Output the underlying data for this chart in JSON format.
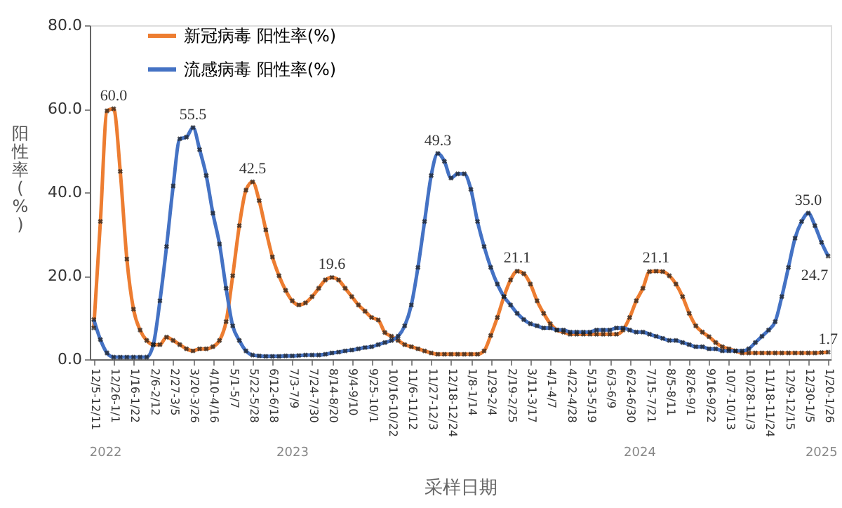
{
  "chart_data": {
    "type": "line",
    "xlabel": "采样日期",
    "ylabel": "阳性率(%)",
    "categories": [
      "12/5-12/11",
      null,
      null,
      "12/26-1/1",
      null,
      null,
      "1/16-1/22",
      null,
      null,
      "2/6-2/12",
      null,
      null,
      "2/27-3/5",
      null,
      null,
      "3/20-3/26",
      null,
      null,
      "4/10-4/16",
      null,
      null,
      "5/1-5/7",
      null,
      null,
      "5/22-5/28",
      null,
      null,
      "6/12-6/18",
      null,
      null,
      "7/3-7/9",
      null,
      null,
      "7/24-7/30",
      null,
      null,
      "8/14-8/20",
      null,
      null,
      "9/4-9/10",
      null,
      null,
      "9/25-10/1",
      null,
      null,
      "10/16-10/22",
      null,
      null,
      "11/6-11/12",
      null,
      null,
      "11/27-12/3",
      null,
      null,
      "12/18-12/24",
      null,
      null,
      "1/8-1/14",
      null,
      null,
      "1/29-2/4",
      null,
      null,
      "2/19-2/25",
      null,
      null,
      "3/11-3/17",
      null,
      null,
      "4/1-4/7",
      null,
      null,
      "4/22-4/28",
      null,
      null,
      "5/13-5/19",
      null,
      null,
      "6/3-6/9",
      null,
      null,
      "6/24-6/30",
      null,
      null,
      "7/15-7/21",
      null,
      null,
      "8/5-8/11",
      null,
      null,
      "8/26-9/1",
      null,
      null,
      "9/16-9/22",
      null,
      null,
      "10/7-10/13",
      null,
      null,
      "10/28-11/3",
      null,
      null,
      "11/18-11/24",
      null,
      null,
      "12/9-12/15",
      null,
      null,
      "12/30-1/5",
      null,
      null,
      "1/20-1/26"
    ],
    "series": [
      {
        "name": "新冠病毒 阳性率(%)",
        "color": "#ed7d31",
        "values": [
          7.5,
          33,
          59.5,
          60,
          45,
          24,
          12,
          7,
          4.5,
          3.5,
          3.5,
          5.3,
          4.5,
          3.5,
          2.5,
          2,
          2.5,
          2.5,
          3,
          4.5,
          9,
          20,
          32,
          40.5,
          42.5,
          38,
          31,
          24.5,
          20,
          16.5,
          14,
          13,
          13.5,
          15,
          17,
          19,
          19.6,
          19,
          17,
          15,
          13,
          11.5,
          10,
          9.4,
          6.4,
          5.5,
          4.5,
          3.5,
          3,
          2.5,
          2,
          1.5,
          1.2,
          1.2,
          1.2,
          1.2,
          1.2,
          1.2,
          1.2,
          2,
          5.7,
          10,
          15,
          19,
          21.1,
          20.5,
          18,
          14,
          11,
          8.5,
          7,
          6.5,
          6,
          6,
          6,
          6,
          6,
          6,
          6,
          6,
          7,
          10,
          14,
          17,
          21,
          21.1,
          21,
          20,
          18,
          15,
          11,
          8,
          6.5,
          5.4,
          4,
          3,
          2.5,
          2,
          1.5,
          1.5,
          1.5,
          1.5,
          1.5,
          1.5,
          1.5,
          1.5,
          1.5,
          1.5,
          1.5,
          1.5,
          1.6,
          1.7
        ],
        "value_labels": [
          null,
          null,
          null,
          "60.0",
          null,
          null,
          null,
          null,
          null,
          null,
          null,
          null,
          null,
          null,
          null,
          null,
          null,
          null,
          null,
          null,
          null,
          null,
          null,
          null,
          "42.5",
          null,
          null,
          null,
          null,
          null,
          null,
          null,
          null,
          null,
          null,
          null,
          "19.6",
          null,
          null,
          null,
          null,
          null,
          null,
          null,
          null,
          null,
          null,
          null,
          null,
          null,
          null,
          null,
          null,
          null,
          null,
          null,
          null,
          null,
          null,
          null,
          null,
          null,
          null,
          null,
          "21.1",
          null,
          null,
          null,
          null,
          null,
          null,
          null,
          null,
          null,
          null,
          null,
          null,
          null,
          null,
          null,
          null,
          null,
          null,
          null,
          null,
          "21.1",
          null,
          null,
          null,
          null,
          null,
          null,
          null,
          null,
          null,
          null,
          null,
          null,
          null,
          null,
          null,
          null,
          null,
          null,
          null,
          null,
          null,
          null,
          null,
          null,
          null,
          "1.7"
        ]
      },
      {
        "name": "流感病毒 阳性率(%)",
        "color": "#4472c4",
        "values": [
          9.5,
          4.7,
          1.5,
          0.5,
          0.5,
          0.5,
          0.5,
          0.5,
          0.5,
          3.5,
          14,
          27,
          41.5,
          52.8,
          53.2,
          55.5,
          50.2,
          44,
          35,
          27.6,
          17,
          8,
          4.5,
          2,
          1,
          0.8,
          0.7,
          0.7,
          0.7,
          0.8,
          0.8,
          0.9,
          1,
          1,
          1,
          1.2,
          1.5,
          1.7,
          2,
          2.2,
          2.5,
          2.8,
          3,
          3.5,
          4,
          4.5,
          5.5,
          8,
          13,
          22,
          33,
          44,
          49.3,
          47.4,
          43.4,
          44.4,
          44.4,
          40.7,
          33,
          27,
          22,
          18,
          15,
          13,
          11,
          9.5,
          8.5,
          8,
          7.5,
          7.5,
          7,
          7,
          6.5,
          6.5,
          6.5,
          6.5,
          7,
          7,
          7,
          7.5,
          7.5,
          7,
          6.5,
          6.5,
          6,
          5.5,
          5,
          4.5,
          4.5,
          4,
          3.5,
          3,
          3,
          2.5,
          2.5,
          2,
          2,
          2,
          2,
          2.5,
          4,
          5.5,
          7,
          9,
          15,
          22,
          29,
          33,
          35,
          32,
          28,
          24.7
        ],
        "value_labels": [
          null,
          null,
          null,
          null,
          null,
          null,
          null,
          null,
          null,
          null,
          null,
          null,
          null,
          null,
          null,
          "55.5",
          null,
          null,
          null,
          null,
          null,
          null,
          null,
          null,
          null,
          null,
          null,
          null,
          null,
          null,
          null,
          null,
          null,
          null,
          null,
          null,
          null,
          null,
          null,
          null,
          null,
          null,
          null,
          null,
          null,
          null,
          null,
          null,
          null,
          null,
          null,
          null,
          "49.3",
          null,
          null,
          null,
          null,
          null,
          null,
          null,
          null,
          null,
          null,
          null,
          null,
          null,
          null,
          null,
          null,
          null,
          null,
          null,
          null,
          null,
          null,
          null,
          null,
          null,
          null,
          null,
          null,
          null,
          null,
          null,
          null,
          null,
          null,
          null,
          null,
          null,
          null,
          null,
          null,
          null,
          null,
          null,
          null,
          null,
          null,
          null,
          null,
          null,
          null,
          null,
          null,
          null,
          null,
          null,
          "35.0",
          null,
          null,
          "24.7"
        ]
      }
    ],
    "ylim": [
      0,
      80
    ],
    "yticks": [
      {
        "value": 0,
        "label": "0.0"
      },
      {
        "value": 20,
        "label": "20.0"
      },
      {
        "value": 40,
        "label": "40.0"
      },
      {
        "value": 60,
        "label": "60.0"
      },
      {
        "value": 80,
        "label": "80.0"
      }
    ],
    "annotations": [
      "2022",
      "2023",
      "2024",
      "2025"
    ],
    "legend": "top",
    "marker": "cross",
    "line_style": "solid",
    "grid": false
  }
}
